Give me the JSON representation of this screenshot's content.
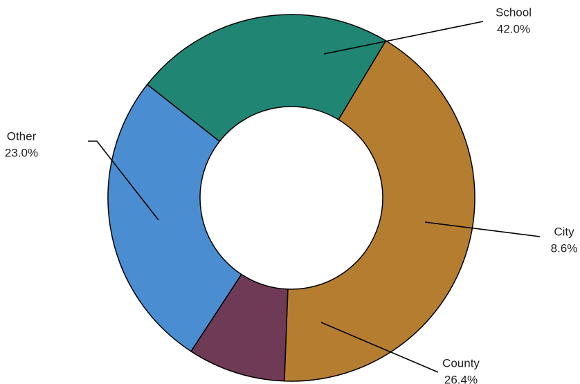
{
  "chart_data": {
    "type": "pie",
    "variant": "donut",
    "slices": [
      {
        "label": "School",
        "value": 42.0,
        "display": "42.0%",
        "color": "#B57D2F"
      },
      {
        "label": "City",
        "value": 8.6,
        "display": "8.6%",
        "color": "#6E3A55"
      },
      {
        "label": "County",
        "value": 26.4,
        "display": "26.4%",
        "color": "#4A8DD1"
      },
      {
        "label": "Other",
        "value": 23.0,
        "display": "23.0%",
        "color": "#208573"
      }
    ],
    "legend": "none"
  }
}
